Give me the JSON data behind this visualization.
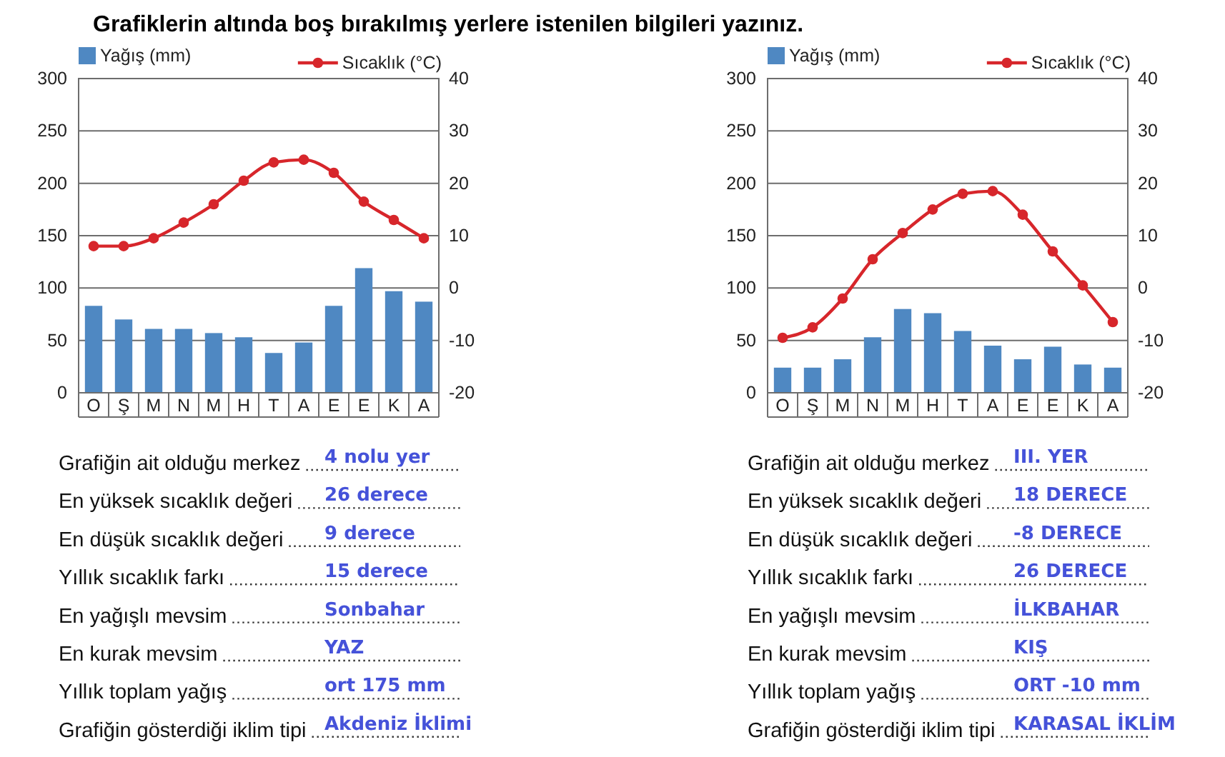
{
  "chart_data": [
    {
      "type": "bar",
      "title": "Grafiklerin altında boş bırakılmış yerlere istenilen bilgileri yazınız.",
      "categories": [
        "O",
        "Ş",
        "M",
        "N",
        "M",
        "H",
        "T",
        "A",
        "E",
        "E",
        "K",
        "A"
      ],
      "series": [
        {
          "name": "Yağış (mm)",
          "color": "#4f88c2",
          "values": [
            83,
            70,
            61,
            61,
            57,
            53,
            38,
            48,
            83,
            119,
            97,
            87
          ]
        },
        {
          "name": "Sıcaklık (°C)",
          "type": "line",
          "axis": "y2",
          "color": "#d7262b",
          "values": [
            8,
            8,
            9.5,
            12.5,
            16,
            20.5,
            24,
            24.5,
            22,
            16.5,
            13,
            9.5
          ]
        }
      ],
      "ylim": [
        0,
        300
      ],
      "yticks": [
        0,
        50,
        100,
        150,
        200,
        250,
        300
      ],
      "y2lim": [
        -20,
        40
      ],
      "y2ticks": [
        -20,
        -10,
        0,
        10,
        20,
        30,
        40
      ],
      "grid": "y",
      "legend": "top",
      "marker": "circle",
      "annotations": [
        "Grafiğin ait olduğu merkez",
        "4 nolu yer",
        "En yüksek sıcaklık değeri",
        "26 derece",
        "En düşük sıcaklık değeri",
        "9 derece",
        "Yıllık sıcaklık farkı",
        "15 derece",
        "En yağışlı mevsim",
        "Sonbahar",
        "En kurak mevsim",
        "YAZ",
        "Yıllık toplam yağış",
        "ort 175 mm",
        "Grafiğin gösterdiği iklim tipi",
        "Akdeniz İklimi"
      ]
    },
    {
      "type": "bar",
      "categories": [
        "O",
        "Ş",
        "M",
        "N",
        "M",
        "H",
        "T",
        "A",
        "E",
        "E",
        "K",
        "A"
      ],
      "series": [
        {
          "name": "Yağış (mm)",
          "color": "#4f88c2",
          "values": [
            24,
            24,
            32,
            53,
            80,
            76,
            59,
            45,
            32,
            44,
            27,
            24
          ]
        },
        {
          "name": "Sıcaklık (°C)",
          "type": "line",
          "axis": "y2",
          "color": "#d7262b",
          "values": [
            -9.5,
            -7.5,
            -2,
            5.5,
            10.5,
            15,
            18,
            18.5,
            14,
            7,
            0.5,
            -6.5
          ]
        }
      ],
      "ylim": [
        0,
        300
      ],
      "yticks": [
        0,
        50,
        100,
        150,
        200,
        250,
        300
      ],
      "y2lim": [
        -20,
        40
      ],
      "y2ticks": [
        -20,
        -10,
        0,
        10,
        20,
        30,
        40
      ],
      "grid": "y",
      "legend": "top",
      "marker": "circle",
      "annotations": [
        "Grafiğin ait olduğu merkez",
        "III. YER",
        "En yüksek sıcaklık değeri",
        "18 DERECE",
        "En düşük sıcaklık değeri",
        "-8 DERECE",
        "Yıllık sıcaklık farkı",
        "26 DERECE",
        "En yağışlı mevsim",
        "İLKBAHAR",
        "En kurak mevsim",
        "KIŞ",
        "Yıllık toplam yağış",
        "ORT -10 mm",
        "Grafiğin gösterdiği iklim tipi",
        "KARASAL İKLİM"
      ]
    }
  ]
}
